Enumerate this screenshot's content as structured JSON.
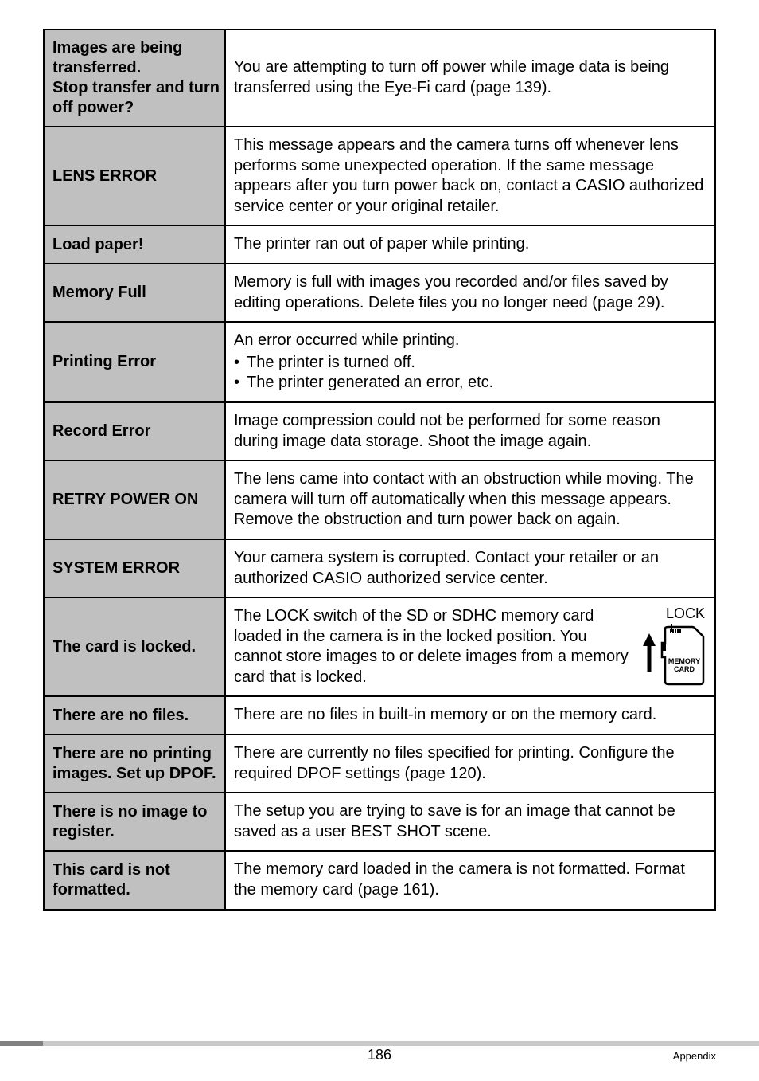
{
  "rows": [
    {
      "label": "Images are being transferred.\nStop transfer and turn off power?",
      "desc": "You are attempting to turn off power while image data is being transferred using the Eye-Fi card (page 139)."
    },
    {
      "label": "LENS ERROR",
      "desc": "This message appears and the camera turns off whenever lens performs some unexpected operation. If the same message appears after you turn power back on, contact a CASIO authorized service center or your original retailer."
    },
    {
      "label": "Load paper!",
      "desc": "The printer ran out of paper while printing."
    },
    {
      "label": "Memory Full",
      "desc": "Memory is full with images you recorded and/or files saved by editing operations. Delete files you no longer need (page 29)."
    },
    {
      "label": "Printing Error",
      "desc_intro": "An error occurred while printing.",
      "bullets": [
        "The printer is turned off.",
        "The printer generated an error, etc."
      ]
    },
    {
      "label": "Record Error",
      "desc": "Image compression could not be performed for some reason during image data storage. Shoot the image again."
    },
    {
      "label": "RETRY POWER ON",
      "desc": "The lens came into contact with an obstruction while moving. The camera will turn off automatically when this message appears. Remove the obstruction and turn power back on again."
    },
    {
      "label": "SYSTEM ERROR",
      "desc": "Your camera system is corrupted. Contact your retailer or an authorized CASIO authorized service center."
    },
    {
      "label": "The card is locked.",
      "lock": true,
      "lock_text": "The LOCK switch of the SD or SDHC memory card loaded in the camera is in the locked position. You cannot store images to or delete images from a memory card that is locked.",
      "lock_label": "LOCK",
      "lock_card_top": "MEMORY",
      "lock_card_bottom": "CARD"
    },
    {
      "label": "There are no files.",
      "desc": "There are no files in built-in memory or on the memory card."
    },
    {
      "label": "There are no printing images. Set up DPOF.",
      "desc": "There are currently no files specified for printing. Configure the required DPOF settings (page 120)."
    },
    {
      "label": "There is no image to register.",
      "desc": "The setup you are trying to save is for an image that cannot be saved as a user BEST SHOT scene."
    },
    {
      "label": "This card is not formatted.",
      "desc": "The memory card loaded in the camera is not formatted. Format the memory card (page 161)."
    }
  ],
  "footer": {
    "page": "186",
    "section": "Appendix"
  }
}
